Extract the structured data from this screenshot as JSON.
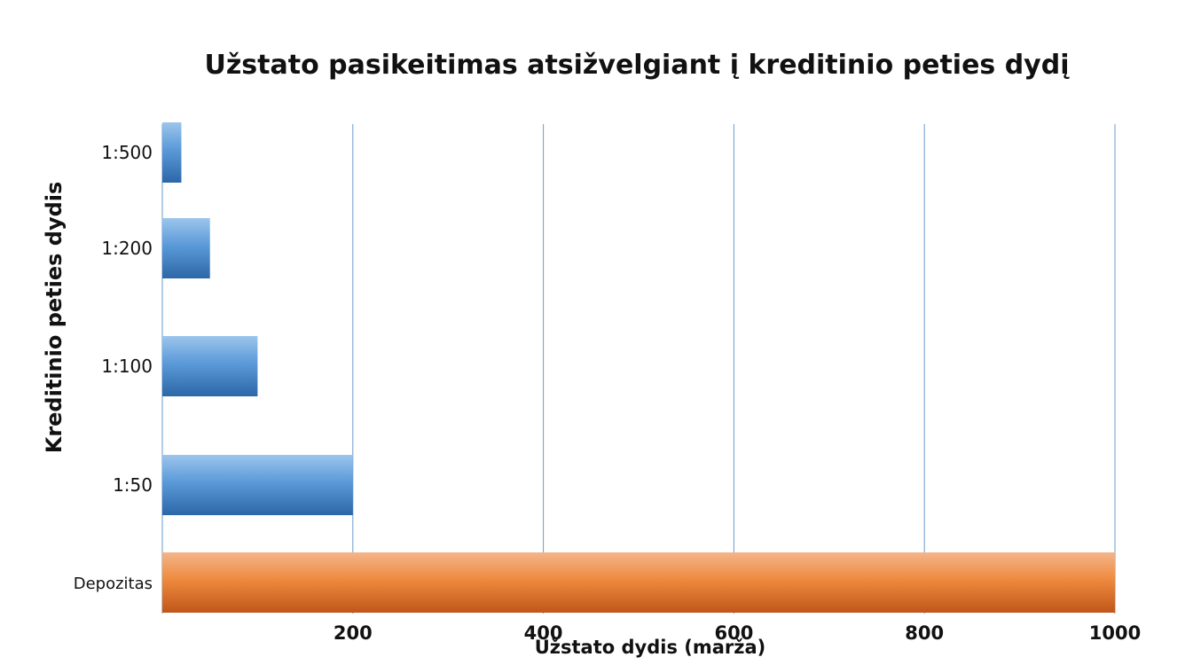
{
  "chart_data": {
    "type": "bar",
    "orientation": "horizontal",
    "title": "Užstato pasikeitimas atsižvelgiant į kreditinio peties dydį",
    "xlabel": "Užstato dydis (marža)",
    "ylabel": "Kreditinio peties dydis",
    "categories": [
      "1:500",
      "1:200",
      "1:100",
      "1:50",
      "Depozitas"
    ],
    "values": [
      20,
      50,
      100,
      200,
      1000
    ],
    "xticks": [
      200,
      400,
      600,
      800,
      1000
    ],
    "xlim": [
      0,
      1000
    ],
    "grid": "vertical",
    "legend": "none",
    "colors": {
      "leverage": "#3f82c4",
      "deposit": "#e87d2c",
      "grid": "#6b9bc8",
      "text": "#111111"
    }
  }
}
